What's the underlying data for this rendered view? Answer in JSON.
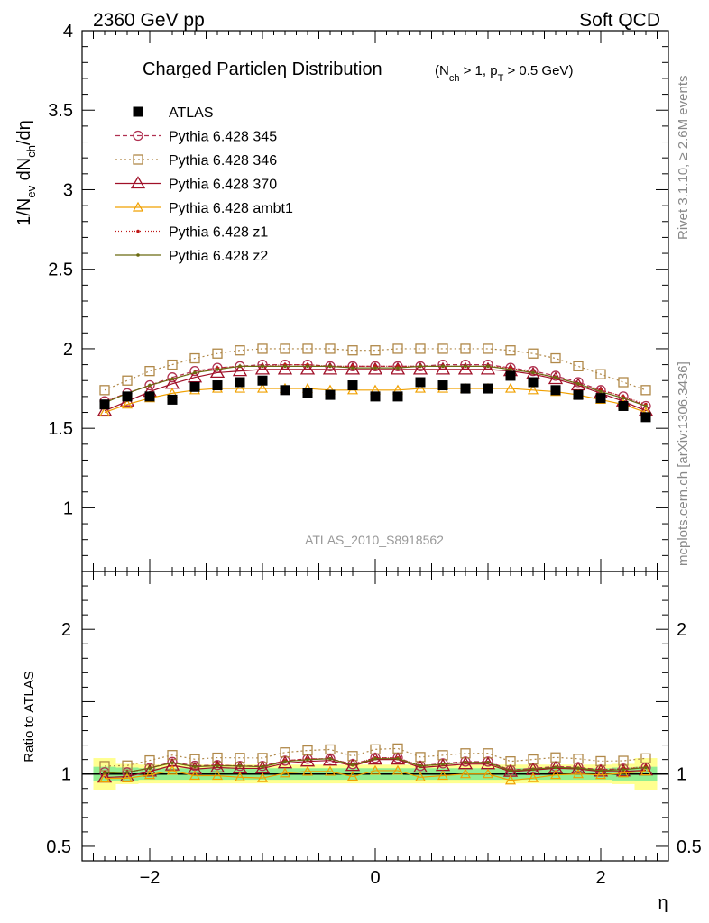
{
  "header": {
    "left": "2360 GeV pp",
    "right": "Soft QCD"
  },
  "side_labels": {
    "rivet": "Rivet 3.1.10, ≥ 2.6M events",
    "mcplots": "mcplots.cern.ch [arXiv:1306.3436]"
  },
  "main": {
    "title": "Charged Particleη Distribution",
    "title_sub": "(N",
    "title_sub_rest": " > 1, p",
    "title_sub_end": " > 0.5 GeV)",
    "title_sub_ch": "ch",
    "title_sub_T": "T",
    "ylabel_a": "1/N",
    "ylabel_ev": "ev",
    "ylabel_b": " dN",
    "ylabel_ch": "ch",
    "ylabel_c": "/dη",
    "watermark": "ATLAS_2010_S8918562"
  },
  "ratio": {
    "ylabel": "Ratio to ATLAS"
  },
  "xlabel": "η",
  "colors": {
    "atlas": "#000000",
    "p345": "#b03050",
    "p346": "#b08848",
    "p370": "#a01028",
    "ambt1": "#f0a000",
    "z1": "#c01818",
    "z2": "#6b6b10",
    "band_inner": "#90ee90",
    "band_outer": "#ffff90"
  },
  "chart_data": {
    "type": "scatter",
    "x": [
      -2.4,
      -2.2,
      -2.0,
      -1.8,
      -1.6,
      -1.4,
      -1.2,
      -1.0,
      -0.8,
      -0.6,
      -0.4,
      -0.2,
      0.0,
      0.2,
      0.4,
      0.6,
      0.8,
      1.0,
      1.2,
      1.4,
      1.6,
      1.8,
      2.0,
      2.2,
      2.4
    ],
    "xlim": [
      -2.6,
      2.6
    ],
    "xticks": [
      -2,
      0,
      2
    ],
    "ylim": [
      0.6,
      4.0
    ],
    "yticks": [
      1,
      1.5,
      2,
      2.5,
      3,
      3.5,
      4
    ],
    "ratio_ylim": [
      0.4,
      2.4
    ],
    "ratio_yticks": [
      0.5,
      1,
      2
    ],
    "series": [
      {
        "name": "ATLAS",
        "key": "atlas",
        "marker": "filled-square",
        "values": [
          1.65,
          1.7,
          1.7,
          1.68,
          1.76,
          1.77,
          1.79,
          1.8,
          1.74,
          1.72,
          1.71,
          1.77,
          1.7,
          1.7,
          1.79,
          1.77,
          1.75,
          1.75,
          1.83,
          1.79,
          1.74,
          1.71,
          1.69,
          1.64,
          1.57
        ]
      },
      {
        "name": "Pythia 6.428 345",
        "key": "p345",
        "marker": "open-circle",
        "dash": "5,3",
        "values": [
          1.67,
          1.72,
          1.77,
          1.82,
          1.86,
          1.88,
          1.89,
          1.9,
          1.9,
          1.9,
          1.89,
          1.89,
          1.89,
          1.89,
          1.89,
          1.9,
          1.9,
          1.9,
          1.88,
          1.86,
          1.83,
          1.79,
          1.74,
          1.7,
          1.64
        ]
      },
      {
        "name": "Pythia 6.428 346",
        "key": "p346",
        "marker": "open-square",
        "dash": "2,3",
        "values": [
          1.74,
          1.8,
          1.86,
          1.9,
          1.94,
          1.97,
          1.99,
          2.0,
          2.0,
          2.0,
          2.0,
          1.99,
          1.99,
          2.0,
          2.0,
          2.0,
          2.0,
          2.0,
          1.99,
          1.97,
          1.94,
          1.89,
          1.84,
          1.79,
          1.74
        ]
      },
      {
        "name": "Pythia 6.428 370",
        "key": "p370",
        "marker": "open-triangle",
        "dash": "",
        "values": [
          1.61,
          1.67,
          1.73,
          1.78,
          1.82,
          1.85,
          1.86,
          1.87,
          1.87,
          1.87,
          1.87,
          1.87,
          1.87,
          1.87,
          1.87,
          1.87,
          1.87,
          1.87,
          1.86,
          1.84,
          1.81,
          1.77,
          1.72,
          1.67,
          1.61
        ]
      },
      {
        "name": "Pythia 6.428 ambt1",
        "key": "ambt1",
        "marker": "open-triangle-small",
        "dash": "",
        "values": [
          1.6,
          1.65,
          1.69,
          1.72,
          1.74,
          1.75,
          1.75,
          1.75,
          1.75,
          1.75,
          1.74,
          1.74,
          1.74,
          1.74,
          1.75,
          1.75,
          1.75,
          1.75,
          1.75,
          1.74,
          1.73,
          1.71,
          1.68,
          1.65,
          1.6
        ]
      },
      {
        "name": "Pythia 6.428 z1",
        "key": "z1",
        "marker": "dot",
        "dash": "1,2",
        "values": [
          1.67,
          1.72,
          1.77,
          1.81,
          1.85,
          1.88,
          1.89,
          1.89,
          1.9,
          1.9,
          1.89,
          1.89,
          1.89,
          1.89,
          1.89,
          1.89,
          1.89,
          1.89,
          1.88,
          1.85,
          1.82,
          1.78,
          1.74,
          1.7,
          1.65
        ]
      },
      {
        "name": "Pythia 6.428 z2",
        "key": "z2",
        "marker": "dot",
        "dash": "",
        "values": [
          1.66,
          1.72,
          1.77,
          1.81,
          1.85,
          1.87,
          1.89,
          1.89,
          1.89,
          1.89,
          1.89,
          1.88,
          1.88,
          1.88,
          1.89,
          1.89,
          1.89,
          1.89,
          1.87,
          1.85,
          1.82,
          1.78,
          1.73,
          1.69,
          1.64
        ]
      }
    ],
    "ratio_band": {
      "inner_half_width": [
        0.05,
        0.045,
        0.04,
        0.04,
        0.04,
        0.04,
        0.04,
        0.04,
        0.04,
        0.04,
        0.04,
        0.04,
        0.04,
        0.04,
        0.04,
        0.04,
        0.04,
        0.04,
        0.04,
        0.04,
        0.04,
        0.04,
        0.04,
        0.045,
        0.05
      ],
      "outer_half_width": [
        0.11,
        0.07,
        0.065,
        0.065,
        0.065,
        0.065,
        0.065,
        0.065,
        0.065,
        0.065,
        0.065,
        0.065,
        0.065,
        0.065,
        0.065,
        0.065,
        0.065,
        0.065,
        0.065,
        0.065,
        0.065,
        0.065,
        0.065,
        0.07,
        0.11
      ]
    }
  }
}
